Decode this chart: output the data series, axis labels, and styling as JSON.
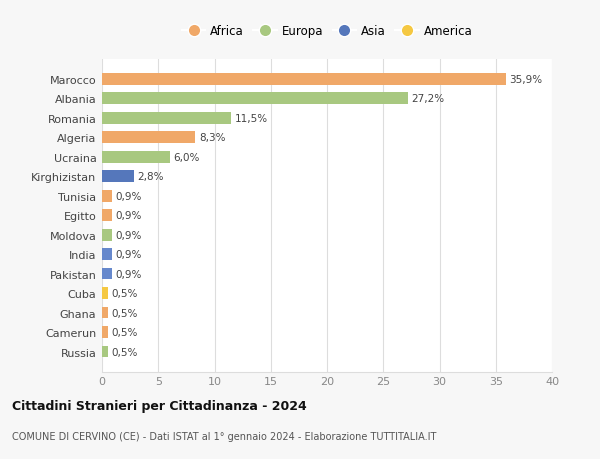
{
  "categories": [
    "Russia",
    "Camerun",
    "Ghana",
    "Cuba",
    "Pakistan",
    "India",
    "Moldova",
    "Egitto",
    "Tunisia",
    "Kirghizistan",
    "Ucraina",
    "Algeria",
    "Romania",
    "Albania",
    "Marocco"
  ],
  "values": [
    0.5,
    0.5,
    0.5,
    0.5,
    0.9,
    0.9,
    0.9,
    0.9,
    0.9,
    2.8,
    6.0,
    8.3,
    11.5,
    27.2,
    35.9
  ],
  "colors": [
    "#a8c880",
    "#f0a868",
    "#f0a868",
    "#f5c842",
    "#6688cc",
    "#6688cc",
    "#a8c880",
    "#f0a868",
    "#f0a868",
    "#5577bb",
    "#a8c880",
    "#f0a868",
    "#a8c880",
    "#a8c880",
    "#f0a868"
  ],
  "labels": [
    "0,5%",
    "0,5%",
    "0,5%",
    "0,5%",
    "0,9%",
    "0,9%",
    "0,9%",
    "0,9%",
    "0,9%",
    "2,8%",
    "6,0%",
    "8,3%",
    "11,5%",
    "27,2%",
    "35,9%"
  ],
  "xlim": [
    0,
    40
  ],
  "xticks": [
    0,
    5,
    10,
    15,
    20,
    25,
    30,
    35,
    40
  ],
  "legend": [
    {
      "label": "Africa",
      "color": "#f0a868"
    },
    {
      "label": "Europa",
      "color": "#a8c880"
    },
    {
      "label": "Asia",
      "color": "#5577bb"
    },
    {
      "label": "America",
      "color": "#f5c842"
    }
  ],
  "title": "Cittadini Stranieri per Cittadinanza - 2024",
  "subtitle": "COMUNE DI CERVINO (CE) - Dati ISTAT al 1° gennaio 2024 - Elaborazione TUTTITALIA.IT",
  "bg_color": "#f7f7f7",
  "bar_bg_color": "#ffffff",
  "grid_color": "#dddddd"
}
